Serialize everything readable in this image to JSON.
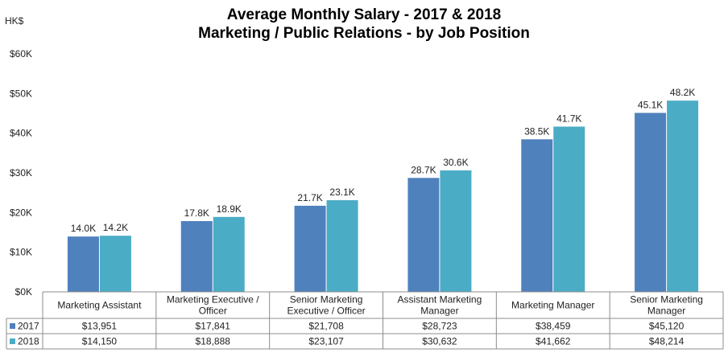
{
  "chart_data": {
    "type": "bar",
    "title": "Average Monthly Salary - 2017 & 2018",
    "subtitle": "Marketing / Public Relations - by Job Position",
    "ylabel": "HK$",
    "ylim": [
      0,
      60000
    ],
    "yticks": [
      0,
      10000,
      20000,
      30000,
      40000,
      50000,
      60000
    ],
    "ytick_labels": [
      "$0K",
      "$10K",
      "$20K",
      "$30K",
      "$40K",
      "$50K",
      "$60K"
    ],
    "grid": false,
    "legend": "data-table",
    "categories": [
      [
        "Marketing Assistant"
      ],
      [
        "Marketing Executive /",
        "Officer"
      ],
      [
        "Senior Marketing",
        "Executive / Officer"
      ],
      [
        "Assistant Marketing",
        "Manager"
      ],
      [
        "Marketing Manager"
      ],
      [
        "Senior Marketing",
        "Manager"
      ]
    ],
    "series": [
      {
        "name": "2017",
        "color": "#4f81bd",
        "values": [
          13951,
          17841,
          21708,
          28723,
          38459,
          45120
        ],
        "bar_labels": [
          "14.0K",
          "17.8K",
          "21.7K",
          "28.7K",
          "38.5K",
          "45.1K"
        ],
        "table_values": [
          "$13,951",
          "$17,841",
          "$21,708",
          "$28,723",
          "$38,459",
          "$45,120"
        ]
      },
      {
        "name": "2018",
        "color": "#4bacc6",
        "values": [
          14150,
          18888,
          23107,
          30632,
          41662,
          48214
        ],
        "bar_labels": [
          "14.2K",
          "18.9K",
          "23.1K",
          "30.6K",
          "41.7K",
          "48.2K"
        ],
        "table_values": [
          "$14,150",
          "$18,888",
          "$23,107",
          "$30,632",
          "$41,662",
          "$48,214"
        ]
      }
    ]
  }
}
